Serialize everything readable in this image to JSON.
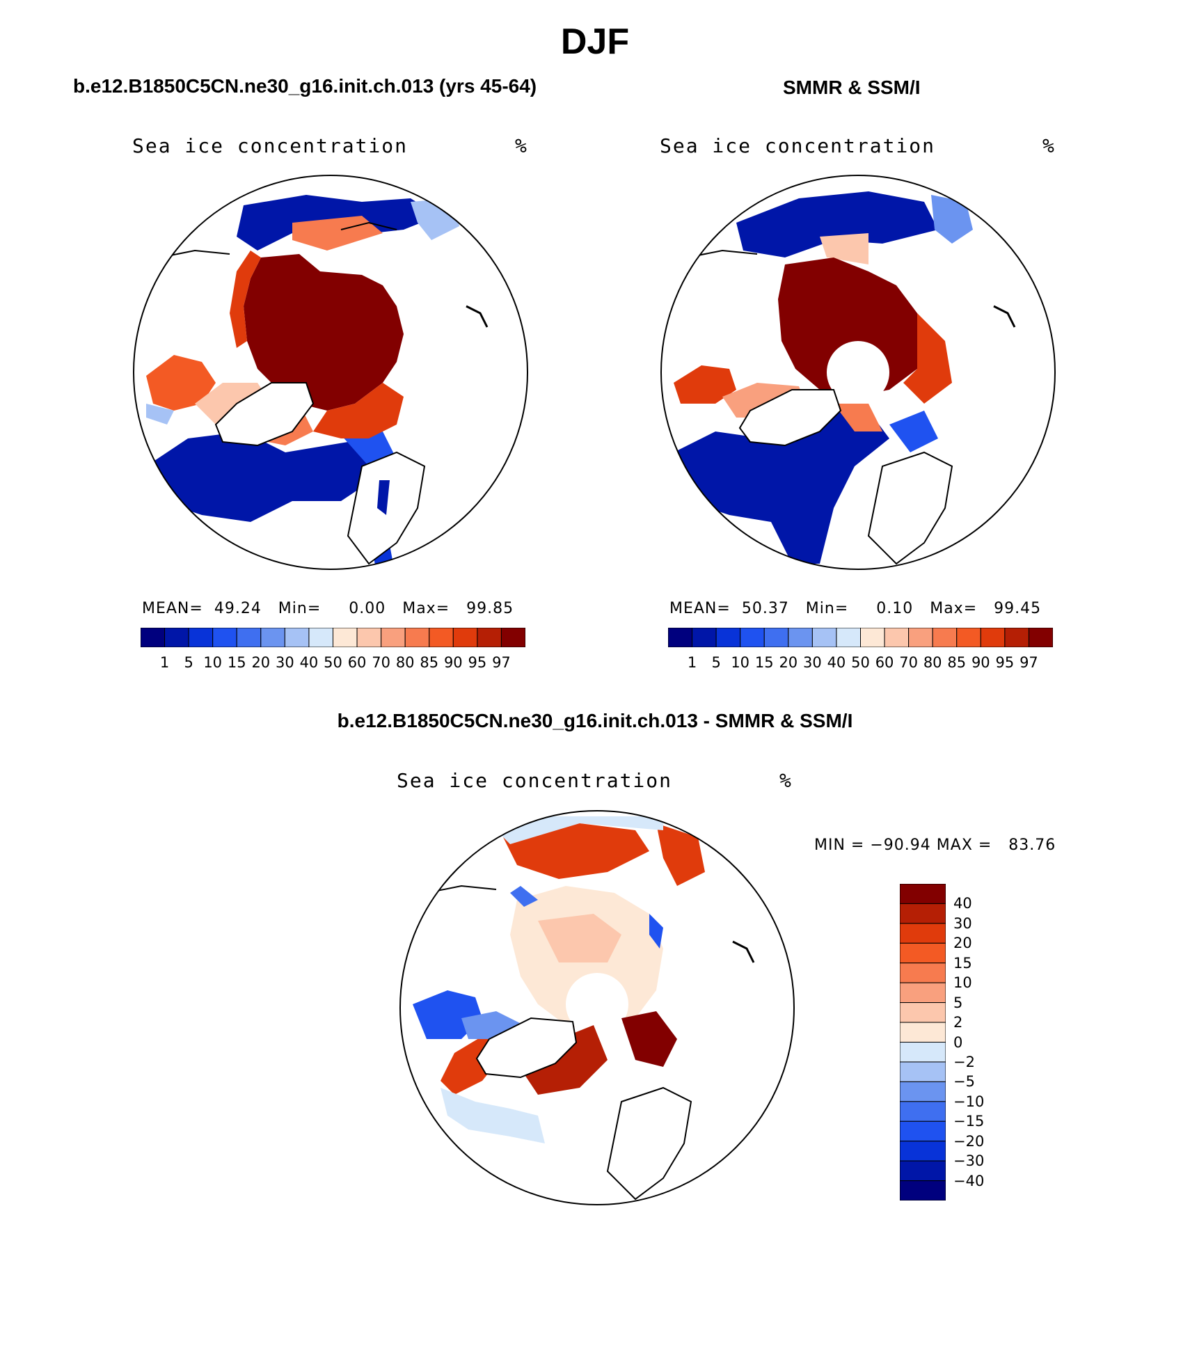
{
  "title": "DJF",
  "panels": [
    {
      "heading": "b.e12.B1850C5CN.ne30_g16.init.ch.013 (yrs 45-64)",
      "field_label": "Sea ice concentration",
      "units": "%",
      "stats": {
        "mean_label": "MEAN=",
        "mean": "49.24",
        "min_label": "Min=",
        "min": "0.00",
        "max_label": "Max=",
        "max": "99.85"
      }
    },
    {
      "heading": "SMMR & SSM/I",
      "field_label": "Sea ice concentration",
      "units": "%",
      "stats": {
        "mean_label": "MEAN=",
        "mean": "50.37",
        "min_label": "Min=",
        "min": "0.10",
        "max_label": "Max=",
        "max": "99.45"
      }
    },
    {
      "heading": "b.e12.B1850C5CN.ne30_g16.init.ch.013 - SMMR & SSM/I",
      "field_label": "Sea ice concentration",
      "units": "%",
      "stats": {
        "min_label": "MIN =",
        "min": "−90.94",
        "max_label": "MAX =",
        "max": "83.76"
      }
    }
  ],
  "colorbar_concentration": {
    "levels": [
      "1",
      "5",
      "10",
      "15",
      "20",
      "30",
      "40",
      "50",
      "60",
      "70",
      "80",
      "85",
      "90",
      "95",
      "97"
    ],
    "colors": [
      "#00007e",
      "#0016a8",
      "#0833d8",
      "#1f52f0",
      "#3f6ff0",
      "#6b94f0",
      "#a6c2f5",
      "#d6e8fa",
      "#fde8d6",
      "#fcc7ad",
      "#f9a07e",
      "#f77b4f",
      "#f35a24",
      "#e03b0c",
      "#b51f05",
      "#820000"
    ]
  },
  "colorbar_difference": {
    "levels": [
      "40",
      "30",
      "20",
      "15",
      "10",
      "5",
      "2",
      "0",
      "−2",
      "−5",
      "−10",
      "−15",
      "−20",
      "−30",
      "−40"
    ],
    "colors": [
      "#820000",
      "#b51f05",
      "#e03b0c",
      "#f35a24",
      "#f77b4f",
      "#f9a07e",
      "#fcc7ad",
      "#fde8d6",
      "#d6e8fa",
      "#a6c2f5",
      "#6b94f0",
      "#3f6ff0",
      "#1f52f0",
      "#0833d8",
      "#0016a8",
      "#00007e"
    ]
  }
}
